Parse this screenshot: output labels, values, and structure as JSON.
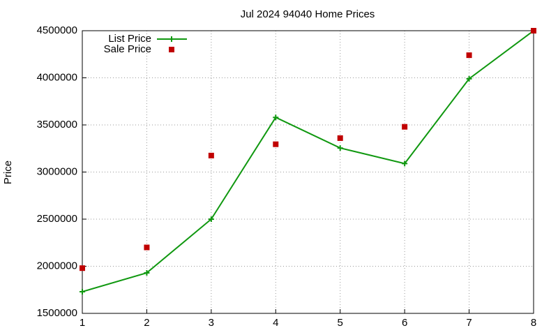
{
  "chart_data": {
    "type": "line",
    "title": "Jul 2024 94040 Home Prices",
    "ylabel": "Price",
    "x": [
      1,
      2,
      3,
      4,
      5,
      6,
      7,
      8
    ],
    "series": [
      {
        "name": "List Price",
        "color": "#109810",
        "style": "linespoints",
        "values": [
          1730000,
          1930000,
          2500000,
          3580000,
          3255000,
          3090000,
          3990000,
          4500000
        ]
      },
      {
        "name": "Sale Price",
        "color": "#c00000",
        "style": "points",
        "values": [
          1980000,
          2200000,
          3175000,
          3295000,
          3360000,
          3480000,
          4240000,
          4500000
        ]
      }
    ],
    "xlim": [
      1,
      8
    ],
    "xticks": [
      1,
      2,
      3,
      4,
      5,
      6,
      7,
      8
    ],
    "ylim": [
      1500000,
      4500000
    ],
    "yticks": [
      1500000,
      2000000,
      2500000,
      3000000,
      3500000,
      4000000,
      4500000
    ],
    "grid": true,
    "legend": "top-left"
  }
}
